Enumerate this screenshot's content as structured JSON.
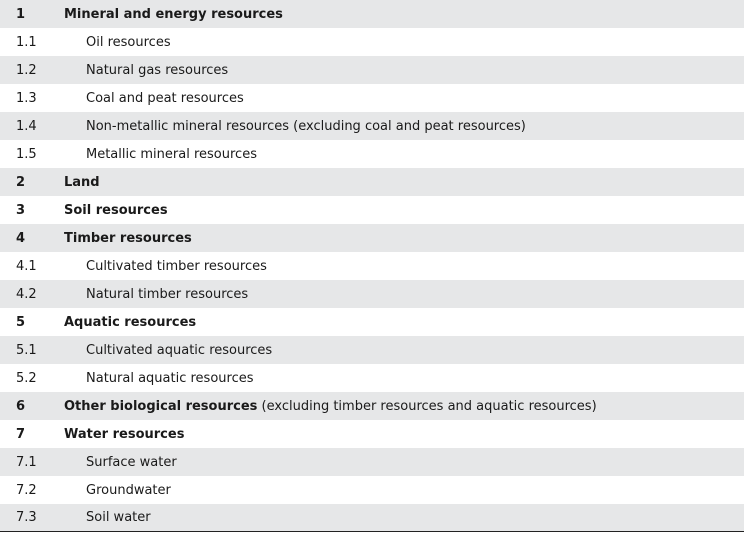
{
  "table": {
    "rows": [
      {
        "code": "1",
        "label": "Mineral and energy resources",
        "suffix": "",
        "level": 1,
        "shaded": true
      },
      {
        "code": "1.1",
        "label": "Oil resources",
        "suffix": "",
        "level": 2,
        "shaded": false
      },
      {
        "code": "1.2",
        "label": "Natural gas resources",
        "suffix": "",
        "level": 2,
        "shaded": true
      },
      {
        "code": "1.3",
        "label": "Coal and peat resources",
        "suffix": "",
        "level": 2,
        "shaded": false
      },
      {
        "code": "1.4",
        "label": "Non-metallic mineral resources (excluding coal and peat resources)",
        "suffix": "",
        "level": 2,
        "shaded": true
      },
      {
        "code": "1.5",
        "label": "Metallic mineral resources",
        "suffix": "",
        "level": 2,
        "shaded": false
      },
      {
        "code": "2",
        "label": "Land",
        "suffix": "",
        "level": 1,
        "shaded": true
      },
      {
        "code": "3",
        "label": "Soil resources",
        "suffix": "",
        "level": 1,
        "shaded": false
      },
      {
        "code": "4",
        "label": "Timber resources",
        "suffix": "",
        "level": 1,
        "shaded": true
      },
      {
        "code": "4.1",
        "label": "Cultivated timber resources",
        "suffix": "",
        "level": 2,
        "shaded": false
      },
      {
        "code": "4.2",
        "label": "Natural timber resources",
        "suffix": "",
        "level": 2,
        "shaded": true
      },
      {
        "code": "5",
        "label": "Aquatic resources",
        "suffix": "",
        "level": 1,
        "shaded": false
      },
      {
        "code": "5.1",
        "label": "Cultivated aquatic resources",
        "suffix": "",
        "level": 2,
        "shaded": true
      },
      {
        "code": "5.2",
        "label": "Natural aquatic resources",
        "suffix": "",
        "level": 2,
        "shaded": false
      },
      {
        "code": "6",
        "label": "Other biological resources",
        "suffix": " (excluding timber resources and aquatic resources)",
        "level": 1,
        "shaded": true
      },
      {
        "code": "7",
        "label": "Water resources",
        "suffix": "",
        "level": 1,
        "shaded": false
      },
      {
        "code": "7.1",
        "label": "Surface water",
        "suffix": "",
        "level": 2,
        "shaded": true
      },
      {
        "code": "7.2",
        "label": "Groundwater",
        "suffix": "",
        "level": 2,
        "shaded": false
      },
      {
        "code": "7.3",
        "label": "Soil water",
        "suffix": "",
        "level": 2,
        "shaded": true
      }
    ]
  }
}
